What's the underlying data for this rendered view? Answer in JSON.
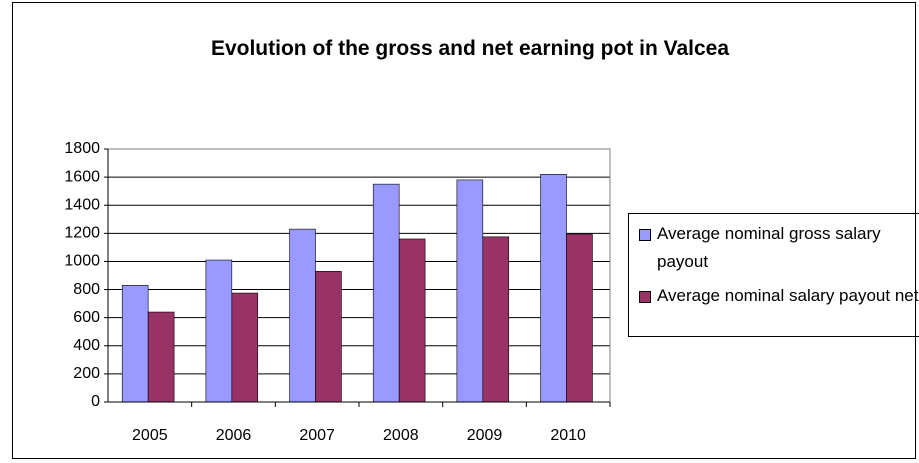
{
  "chart_data": {
    "type": "bar",
    "title": "Evolution of the gross and net earning pot in Valcea",
    "categories": [
      "2005",
      "2006",
      "2007",
      "2008",
      "2009",
      "2010"
    ],
    "series": [
      {
        "name": "Average nominal gross salary payout",
        "color": "#9999ff",
        "values": [
          830,
          1010,
          1230,
          1550,
          1580,
          1620
        ]
      },
      {
        "name": "Average nominal salary payout net",
        "color": "#993366",
        "values": [
          640,
          775,
          930,
          1160,
          1175,
          1195
        ]
      }
    ],
    "ylim": [
      0,
      1800
    ],
    "yticks": [
      0,
      200,
      400,
      600,
      800,
      1000,
      1200,
      1400,
      1600,
      1800
    ],
    "grid": true,
    "legend": "right"
  }
}
